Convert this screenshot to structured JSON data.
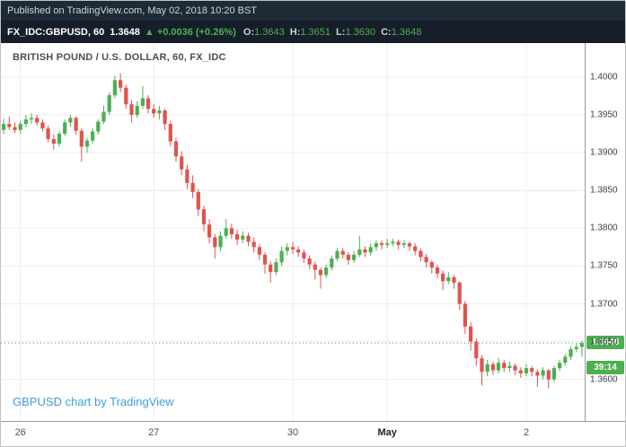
{
  "meta": {
    "published": "Published on TradingView.com, May 02, 2018 10:20 BST"
  },
  "quote": {
    "symbol": "FX_IDC:GBPUSD, 60",
    "last": "1.3648",
    "change_arrow": "▲",
    "change": "+0.0036 (+0.26%)",
    "o_label": "O:",
    "o": "1.3643",
    "h_label": "H:",
    "h": "1.3651",
    "l_label": "L:",
    "l": "1.3630",
    "c_label": "C:",
    "c": "1.3648"
  },
  "chart": {
    "title": "BRITISH POUND / U.S. DOLLAR, 60, FX_IDC",
    "attribution": "GBPUSD chart by TradingView",
    "last_price_label": "1.3648",
    "countdown": "39:14"
  },
  "colors": {
    "up": "#4caf50",
    "down": "#e0534d",
    "badge": "#4caf50",
    "link": "#3f9fd8",
    "topbar": "#1e2a36",
    "grid": "#ececec"
  },
  "chart_data": {
    "type": "candlestick",
    "title": "BRITISH POUND / U.S. DOLLAR, 60, FX_IDC",
    "symbol": "GBPUSD",
    "interval": "60",
    "xlabel": "",
    "ylabel": "",
    "grid": true,
    "y_ticks": [
      "1.4000",
      "1.3950",
      "1.3900",
      "1.3850",
      "1.3800",
      "1.3750",
      "1.3700",
      "1.3650",
      "1.3600"
    ],
    "y_range": [
      1.3545,
      1.4045
    ],
    "x_ticks": [
      {
        "index": 3,
        "label": "26"
      },
      {
        "index": 27,
        "label": "27"
      },
      {
        "index": 52,
        "label": "30"
      },
      {
        "index": 69,
        "label": "May",
        "bold": true
      },
      {
        "index": 94,
        "label": "2"
      }
    ],
    "last_price": 1.3648,
    "candles": [
      [
        1.393,
        1.3945,
        1.3925,
        1.3938
      ],
      [
        1.3938,
        1.3948,
        1.393,
        1.3934
      ],
      [
        1.3934,
        1.394,
        1.3926,
        1.393
      ],
      [
        1.393,
        1.3942,
        1.3925,
        1.3938
      ],
      [
        1.3938,
        1.395,
        1.3934,
        1.3944
      ],
      [
        1.3944,
        1.3952,
        1.3938,
        1.3946
      ],
      [
        1.3946,
        1.395,
        1.3936,
        1.394
      ],
      [
        1.394,
        1.3944,
        1.3928,
        1.3932
      ],
      [
        1.3932,
        1.3936,
        1.3914,
        1.3918
      ],
      [
        1.3918,
        1.3924,
        1.3904,
        1.3912
      ],
      [
        1.3912,
        1.3928,
        1.3908,
        1.3925
      ],
      [
        1.3925,
        1.3944,
        1.3922,
        1.394
      ],
      [
        1.394,
        1.395,
        1.3934,
        1.3946
      ],
      [
        1.3946,
        1.3948,
        1.3924,
        1.3929
      ],
      [
        1.3929,
        1.3932,
        1.3888,
        1.3908
      ],
      [
        1.3908,
        1.392,
        1.39,
        1.3916
      ],
      [
        1.3916,
        1.3932,
        1.3912,
        1.3928
      ],
      [
        1.3928,
        1.3944,
        1.3924,
        1.3941
      ],
      [
        1.3941,
        1.3962,
        1.3938,
        1.3954
      ],
      [
        1.3954,
        1.398,
        1.395,
        1.3976
      ],
      [
        1.3976,
        1.4002,
        1.3972,
        1.3996
      ],
      [
        1.3996,
        1.4005,
        1.398,
        1.3986
      ],
      [
        1.3986,
        1.399,
        1.3958,
        1.3964
      ],
      [
        1.3964,
        1.397,
        1.394,
        1.395
      ],
      [
        1.395,
        1.3968,
        1.3946,
        1.3962
      ],
      [
        1.3962,
        1.3988,
        1.3958,
        1.3972
      ],
      [
        1.3972,
        1.3976,
        1.3952,
        1.3958
      ],
      [
        1.3958,
        1.3964,
        1.3946,
        1.3952
      ],
      [
        1.3952,
        1.3962,
        1.3944,
        1.3956
      ],
      [
        1.3956,
        1.3958,
        1.393,
        1.3938
      ],
      [
        1.3938,
        1.3942,
        1.3908,
        1.3915
      ],
      [
        1.3915,
        1.392,
        1.3888,
        1.3895
      ],
      [
        1.3895,
        1.3902,
        1.387,
        1.3878
      ],
      [
        1.3878,
        1.3884,
        1.3852,
        1.386
      ],
      [
        1.386,
        1.387,
        1.384,
        1.3848
      ],
      [
        1.3848,
        1.3852,
        1.3816,
        1.3825
      ],
      [
        1.3825,
        1.383,
        1.3796,
        1.3805
      ],
      [
        1.3805,
        1.3812,
        1.378,
        1.3788
      ],
      [
        1.3788,
        1.3792,
        1.376,
        1.3775
      ],
      [
        1.3775,
        1.3796,
        1.377,
        1.379
      ],
      [
        1.379,
        1.3812,
        1.3786,
        1.38
      ],
      [
        1.38,
        1.3806,
        1.3786,
        1.3792
      ],
      [
        1.3792,
        1.3798,
        1.3778,
        1.3785
      ],
      [
        1.3785,
        1.3796,
        1.378,
        1.379
      ],
      [
        1.379,
        1.3794,
        1.3776,
        1.3782
      ],
      [
        1.3782,
        1.3788,
        1.3768,
        1.3775
      ],
      [
        1.3775,
        1.3779,
        1.3758,
        1.3765
      ],
      [
        1.3765,
        1.3768,
        1.374,
        1.3752
      ],
      [
        1.3752,
        1.3756,
        1.3728,
        1.3742
      ],
      [
        1.3742,
        1.376,
        1.3738,
        1.3755
      ],
      [
        1.3755,
        1.3776,
        1.375,
        1.377
      ],
      [
        1.377,
        1.378,
        1.3764,
        1.3775
      ],
      [
        1.3775,
        1.3782,
        1.3766,
        1.3772
      ],
      [
        1.3772,
        1.3776,
        1.3762,
        1.3768
      ],
      [
        1.3768,
        1.3772,
        1.3754,
        1.376
      ],
      [
        1.376,
        1.3764,
        1.3746,
        1.3752
      ],
      [
        1.3752,
        1.3756,
        1.3732,
        1.3745
      ],
      [
        1.3745,
        1.3748,
        1.372,
        1.3738
      ],
      [
        1.3738,
        1.3752,
        1.3734,
        1.3748
      ],
      [
        1.3748,
        1.3764,
        1.3744,
        1.376
      ],
      [
        1.376,
        1.3774,
        1.3756,
        1.377
      ],
      [
        1.377,
        1.3774,
        1.376,
        1.3765
      ],
      [
        1.3765,
        1.3768,
        1.3752,
        1.3758
      ],
      [
        1.3758,
        1.377,
        1.3754,
        1.3765
      ],
      [
        1.3765,
        1.379,
        1.3762,
        1.3772
      ],
      [
        1.3772,
        1.3776,
        1.3762,
        1.3768
      ],
      [
        1.3768,
        1.378,
        1.3764,
        1.3775
      ],
      [
        1.3775,
        1.3784,
        1.377,
        1.378
      ],
      [
        1.378,
        1.3784,
        1.3772,
        1.3778
      ],
      [
        1.3778,
        1.3786,
        1.3774,
        1.378
      ],
      [
        1.378,
        1.3786,
        1.3776,
        1.3782
      ],
      [
        1.3782,
        1.3785,
        1.3772,
        1.3778
      ],
      [
        1.3778,
        1.3784,
        1.3774,
        1.378
      ],
      [
        1.378,
        1.3782,
        1.377,
        1.3776
      ],
      [
        1.3776,
        1.378,
        1.3764,
        1.377
      ],
      [
        1.377,
        1.3773,
        1.3756,
        1.3762
      ],
      [
        1.3762,
        1.3766,
        1.3748,
        1.3755
      ],
      [
        1.3755,
        1.3758,
        1.374,
        1.3748
      ],
      [
        1.3748,
        1.3752,
        1.3734,
        1.374
      ],
      [
        1.374,
        1.3744,
        1.3718,
        1.373
      ],
      [
        1.373,
        1.3742,
        1.3726,
        1.3735
      ],
      [
        1.3735,
        1.3738,
        1.372,
        1.3728
      ],
      [
        1.3728,
        1.373,
        1.3692,
        1.37
      ],
      [
        1.37,
        1.3704,
        1.366,
        1.367
      ],
      [
        1.367,
        1.3676,
        1.3638,
        1.365
      ],
      [
        1.365,
        1.3654,
        1.3618,
        1.3628
      ],
      [
        1.3628,
        1.3632,
        1.3592,
        1.361
      ],
      [
        1.361,
        1.3626,
        1.3604,
        1.362
      ],
      [
        1.362,
        1.3624,
        1.3606,
        1.3612
      ],
      [
        1.3612,
        1.3628,
        1.3608,
        1.3622
      ],
      [
        1.3622,
        1.3626,
        1.361,
        1.3615
      ],
      [
        1.3615,
        1.3624,
        1.361,
        1.3618
      ],
      [
        1.3618,
        1.3621,
        1.3606,
        1.3612
      ],
      [
        1.3612,
        1.3616,
        1.3602,
        1.3608
      ],
      [
        1.3608,
        1.362,
        1.3604,
        1.3615
      ],
      [
        1.3615,
        1.3618,
        1.3604,
        1.361
      ],
      [
        1.361,
        1.3613,
        1.359,
        1.3605
      ],
      [
        1.3605,
        1.3616,
        1.36,
        1.3612
      ],
      [
        1.3612,
        1.3614,
        1.3588,
        1.36
      ],
      [
        1.36,
        1.3618,
        1.3596,
        1.3615
      ],
      [
        1.3615,
        1.3626,
        1.3611,
        1.3622
      ],
      [
        1.3622,
        1.3634,
        1.3618,
        1.363
      ],
      [
        1.363,
        1.3644,
        1.3626,
        1.364
      ],
      [
        1.364,
        1.3648,
        1.3636,
        1.3643
      ],
      [
        1.3643,
        1.3651,
        1.363,
        1.3648
      ]
    ]
  }
}
